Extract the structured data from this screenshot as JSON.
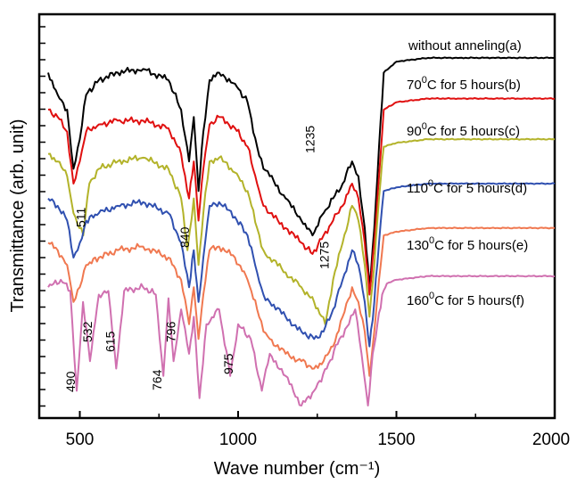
{
  "chart_data": {
    "type": "line",
    "title": "",
    "xlabel": "Wave number (cm⁻¹)",
    "ylabel": "Transmittance (arb. unit)",
    "xlim": [
      400,
      2000
    ],
    "x_ticks": [
      500,
      1000,
      1500,
      2000
    ],
    "y_ticks": "unlabeled",
    "grid": false,
    "legend": "inline labels at right end of each curve",
    "series": [
      {
        "name": "without anneling(a)",
        "label_main": "without anneling(a)",
        "color": "#000000",
        "offset": 0.0,
        "x": [
          400,
          430,
          460,
          480,
          500,
          520,
          560,
          620,
          700,
          780,
          820,
          845,
          860,
          875,
          890,
          910,
          940,
          990,
          1030,
          1060,
          1080,
          1100,
          1150,
          1200,
          1235,
          1270,
          1300,
          1330,
          1360,
          1380,
          1400,
          1415,
          1430,
          1445,
          1460,
          1500,
          1600,
          1700,
          1800,
          1900,
          2000
        ],
        "y": [
          90,
          84,
          80,
          64,
          72,
          84,
          88,
          90,
          91,
          88,
          80,
          66,
          78,
          58,
          74,
          88,
          90,
          87,
          82,
          70,
          64,
          62,
          56,
          50,
          46,
          52,
          56,
          60,
          66,
          62,
          48,
          32,
          48,
          70,
          90,
          93,
          94,
          94,
          94,
          94,
          94
        ]
      },
      {
        "name": "70⁰C for 5 hours(b)",
        "label_prefix": "70",
        "label_sup": "0",
        "label_suffix": "C for 5 hours(b)",
        "color": "#e01010",
        "offset": 0.0,
        "x": [
          400,
          430,
          460,
          480,
          500,
          520,
          560,
          620,
          700,
          780,
          820,
          845,
          860,
          875,
          890,
          910,
          940,
          990,
          1030,
          1060,
          1080,
          1100,
          1150,
          1200,
          1235,
          1270,
          1300,
          1330,
          1360,
          1380,
          1400,
          1415,
          1430,
          1445,
          1460,
          1500,
          1600,
          1700,
          1800,
          1900,
          2000
        ],
        "y": [
          80,
          78,
          74,
          60,
          66,
          74,
          76,
          77,
          77,
          75,
          68,
          56,
          66,
          50,
          64,
          76,
          78,
          75,
          70,
          60,
          54,
          52,
          48,
          44,
          41,
          46,
          50,
          54,
          60,
          56,
          44,
          30,
          44,
          62,
          80,
          82,
          83,
          83,
          83,
          83,
          83
        ]
      },
      {
        "name": "90⁰C for 5 hours(c)",
        "label_prefix": "90",
        "label_sup": "0",
        "label_suffix": "C for 5 hours(c)",
        "color": "#b3b32a",
        "offset": 0.0,
        "x": [
          400,
          430,
          460,
          480,
          511,
          530,
          560,
          620,
          700,
          780,
          820,
          840,
          860,
          875,
          890,
          910,
          940,
          990,
          1030,
          1060,
          1080,
          1100,
          1150,
          1200,
          1240,
          1275,
          1300,
          1330,
          1360,
          1380,
          1400,
          1415,
          1430,
          1445,
          1460,
          1500,
          1600,
          1700,
          1800,
          1900,
          2000
        ],
        "y": [
          68,
          66,
          62,
          52,
          46,
          60,
          64,
          66,
          67,
          64,
          56,
          42,
          56,
          38,
          52,
          66,
          67,
          63,
          58,
          48,
          42,
          40,
          36,
          32,
          28,
          22,
          34,
          44,
          54,
          50,
          38,
          24,
          38,
          56,
          70,
          71,
          72,
          72,
          72,
          72,
          72
        ]
      },
      {
        "name": "110⁰C for 5 hours(d)",
        "label_prefix": "110",
        "label_sup": "0",
        "label_suffix": "C for 5 hours(d)",
        "color": "#3050b0",
        "offset": 0.0,
        "x": [
          400,
          430,
          460,
          480,
          500,
          520,
          560,
          620,
          700,
          780,
          820,
          845,
          860,
          875,
          890,
          910,
          940,
          990,
          1030,
          1060,
          1080,
          1100,
          1150,
          1200,
          1240,
          1270,
          1300,
          1330,
          1360,
          1380,
          1400,
          1415,
          1430,
          1445,
          1460,
          1500,
          1600,
          1700,
          1800,
          1900,
          2000
        ],
        "y": [
          56,
          54,
          50,
          40,
          44,
          50,
          52,
          54,
          55,
          52,
          44,
          32,
          42,
          28,
          40,
          54,
          55,
          51,
          46,
          36,
          30,
          28,
          24,
          20,
          18,
          20,
          26,
          34,
          42,
          38,
          28,
          16,
          28,
          44,
          58,
          59,
          60,
          60,
          60,
          60,
          60
        ]
      },
      {
        "name": "130⁰C for 5 hours(e)",
        "label_prefix": "130",
        "label_sup": "0",
        "label_suffix": "C for 5 hours(e)",
        "color": "#f07850",
        "offset": 0.0,
        "x": [
          400,
          430,
          460,
          480,
          500,
          520,
          560,
          620,
          700,
          780,
          820,
          845,
          860,
          875,
          890,
          910,
          940,
          990,
          1030,
          1060,
          1080,
          1100,
          1150,
          1200,
          1240,
          1270,
          1300,
          1330,
          1360,
          1380,
          1400,
          1415,
          1430,
          1445,
          1460,
          1500,
          1600,
          1700,
          1800,
          1900,
          2000
        ],
        "y": [
          44,
          42,
          38,
          28,
          32,
          38,
          40,
          42,
          43,
          40,
          34,
          22,
          32,
          18,
          30,
          42,
          43,
          40,
          34,
          26,
          20,
          18,
          14,
          12,
          10,
          12,
          16,
          24,
          32,
          28,
          20,
          8,
          20,
          34,
          46,
          47,
          48,
          48,
          48,
          48,
          48
        ]
      },
      {
        "name": "160⁰C for 5 hours(f)",
        "label_prefix": "160",
        "label_sup": "0",
        "label_suffix": "C for 5 hours(f)",
        "color": "#d070b0",
        "offset": 0.0,
        "x": [
          400,
          440,
          470,
          490,
          510,
          532,
          560,
          590,
          615,
          640,
          700,
          740,
          764,
          780,
          796,
          820,
          845,
          860,
          878,
          900,
          940,
          975,
          1000,
          1040,
          1075,
          1100,
          1150,
          1200,
          1240,
          1280,
          1320,
          1350,
          1370,
          1390,
          1410,
          1425,
          1440,
          1455,
          1470,
          1500,
          1600,
          1700,
          1800,
          1900,
          2000
        ],
        "y": [
          32,
          34,
          31,
          4,
          28,
          12,
          30,
          31,
          10,
          31,
          32,
          30,
          8,
          29,
          12,
          26,
          14,
          24,
          2,
          22,
          26,
          8,
          22,
          18,
          4,
          14,
          8,
          0,
          4,
          10,
          18,
          22,
          26,
          14,
          0,
          14,
          22,
          30,
          33,
          34,
          35,
          35,
          35,
          35,
          35
        ]
      }
    ],
    "annotations": [
      {
        "text": "490",
        "x": 490
      },
      {
        "text": "532",
        "x": 532
      },
      {
        "text": "615",
        "x": 615
      },
      {
        "text": "764",
        "x": 764
      },
      {
        "text": "796",
        "x": 796
      },
      {
        "text": "975",
        "x": 975
      },
      {
        "text": "511",
        "x": 511
      },
      {
        "text": "840",
        "x": 840
      },
      {
        "text": "1235",
        "x": 1235
      },
      {
        "text": "1275",
        "x": 1275
      }
    ]
  }
}
